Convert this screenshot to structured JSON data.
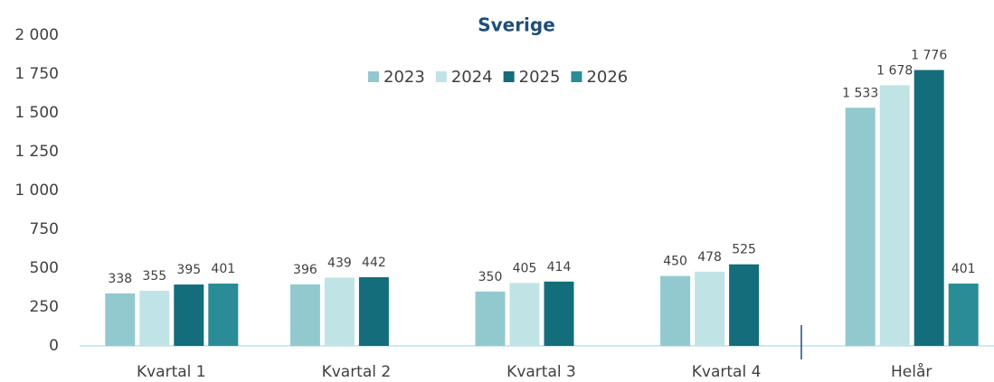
{
  "chart_data": {
    "type": "bar",
    "title": "Sverige",
    "categories": [
      "Kvartal 1",
      "Kvartal 2",
      "Kvartal 3",
      "Kvartal 4",
      "Helår"
    ],
    "series": [
      {
        "name": "2023",
        "color": "#92c9cf",
        "values": [
          338,
          396,
          350,
          450,
          1533
        ],
        "value_labels": [
          "338",
          "396",
          "350",
          "450",
          "1 533"
        ]
      },
      {
        "name": "2024",
        "color": "#c0e3e6",
        "values": [
          355,
          439,
          405,
          478,
          1678
        ],
        "value_labels": [
          "355",
          "439",
          "405",
          "478",
          "1 678"
        ]
      },
      {
        "name": "2025",
        "color": "#136d7a",
        "values": [
          395,
          442,
          414,
          525,
          1776
        ],
        "value_labels": [
          "395",
          "442",
          "414",
          "525",
          "1 776"
        ]
      },
      {
        "name": "2026",
        "color": "#2a8c96",
        "values": [
          401,
          null,
          null,
          null,
          401
        ],
        "value_labels": [
          "401",
          null,
          null,
          null,
          "401"
        ]
      }
    ],
    "ylim": [
      0,
      2000
    ],
    "yticks": [
      0,
      250,
      500,
      750,
      {
        "value": 1000,
        "label": "1 000"
      },
      {
        "value": 1250,
        "label": "1 250"
      },
      {
        "value": 1500,
        "label": "1 500"
      },
      {
        "value": 1750,
        "label": "1 750"
      },
      {
        "value": 2000,
        "label": "2 000"
      }
    ],
    "grid": false,
    "legend": "top"
  }
}
